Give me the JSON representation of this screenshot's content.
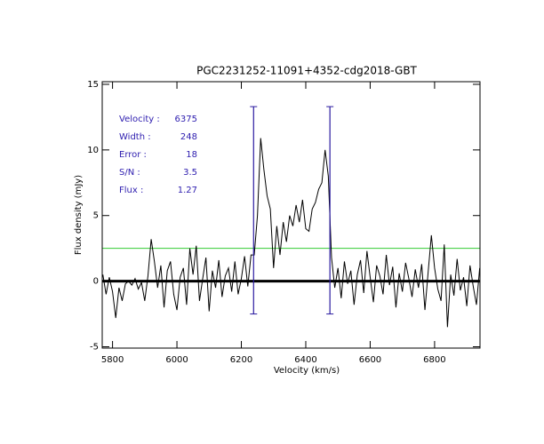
{
  "chart_data": {
    "type": "line",
    "title": "PGC2231252-11091+4352-cdg2018-GBT",
    "x_label": "Velocity (km/s)",
    "y_label": "Flux density (mJy)",
    "xlim": [
      5768,
      6941
    ],
    "ylim": [
      -5.1,
      15.2
    ],
    "xticks": [
      5800,
      6000,
      6200,
      6400,
      6600,
      6800
    ],
    "yticks": [
      -5,
      0,
      5,
      10,
      15
    ],
    "color": "#000000",
    "x": [
      5770,
      5780,
      5790,
      5800,
      5810,
      5820,
      5830,
      5840,
      5850,
      5860,
      5870,
      5880,
      5890,
      5900,
      5910,
      5920,
      5930,
      5940,
      5950,
      5960,
      5970,
      5980,
      5990,
      6000,
      6010,
      6020,
      6030,
      6040,
      6050,
      6060,
      6070,
      6080,
      6090,
      6100,
      6110,
      6120,
      6130,
      6140,
      6150,
      6160,
      6170,
      6180,
      6190,
      6200,
      6210,
      6220,
      6230,
      6240,
      6250,
      6260,
      6270,
      6280,
      6290,
      6300,
      6310,
      6320,
      6330,
      6340,
      6350,
      6360,
      6370,
      6380,
      6390,
      6400,
      6410,
      6420,
      6430,
      6440,
      6450,
      6460,
      6470,
      6480,
      6490,
      6500,
      6510,
      6520,
      6530,
      6540,
      6550,
      6560,
      6570,
      6580,
      6590,
      6600,
      6610,
      6620,
      6630,
      6640,
      6650,
      6660,
      6670,
      6680,
      6690,
      6700,
      6710,
      6720,
      6730,
      6740,
      6750,
      6760,
      6770,
      6780,
      6790,
      6800,
      6810,
      6820,
      6830,
      6840,
      6850,
      6860,
      6870,
      6880,
      6890,
      6900,
      6910,
      6920,
      6930,
      6940
    ],
    "values": [
      0.5,
      -1.0,
      0.3,
      -0.8,
      -2.8,
      -0.5,
      -1.5,
      -0.2,
      0.0,
      -0.3,
      0.2,
      -0.6,
      -0.1,
      -1.5,
      0.4,
      3.2,
      1.5,
      -0.5,
      1.2,
      -2.0,
      0.8,
      1.5,
      -1.0,
      -2.2,
      0.3,
      1.0,
      -1.8,
      2.5,
      0.5,
      2.7,
      -1.5,
      0.2,
      1.8,
      -2.3,
      0.8,
      -0.5,
      1.6,
      -1.2,
      0.4,
      1.0,
      -0.8,
      1.5,
      -1.0,
      0.2,
      1.9,
      -0.4,
      2.0,
      2.0,
      5.0,
      10.9,
      8.5,
      6.5,
      5.5,
      1.0,
      4.2,
      2.0,
      4.5,
      3.0,
      5.0,
      4.2,
      5.8,
      4.5,
      6.2,
      4.0,
      3.8,
      5.5,
      6.0,
      7.0,
      7.5,
      10.0,
      8.0,
      1.8,
      -0.5,
      1.0,
      -1.3,
      1.5,
      -0.2,
      0.8,
      -1.8,
      0.5,
      1.6,
      -0.9,
      2.3,
      0.3,
      -1.6,
      1.2,
      0.4,
      -1.0,
      2.0,
      -0.3,
      1.1,
      -2.0,
      0.6,
      -0.8,
      1.4,
      0.2,
      -1.2,
      0.9,
      -0.5,
      1.3,
      -2.2,
      0.7,
      3.5,
      1.0,
      -0.6,
      -1.5,
      2.8,
      -3.5,
      0.5,
      -1.1,
      1.7,
      -0.7,
      0.3,
      -1.9,
      1.2,
      -0.4,
      -1.8,
      1.0
    ],
    "baseline": 0,
    "threshold": 2.5,
    "threshold_color": "#33cc33",
    "markers": [
      6238,
      6475
    ],
    "marker_range": [
      -2.5,
      13.3
    ],
    "marker_color": "#2a1aa0",
    "annotations": [
      {
        "label": "Velocity :",
        "value": 6375
      },
      {
        "label": "Width :",
        "value": 248
      },
      {
        "label": "Error :",
        "value": 18
      },
      {
        "label": "S/N :",
        "value": 3.5
      },
      {
        "label": "Flux :",
        "value": 1.27
      }
    ]
  }
}
